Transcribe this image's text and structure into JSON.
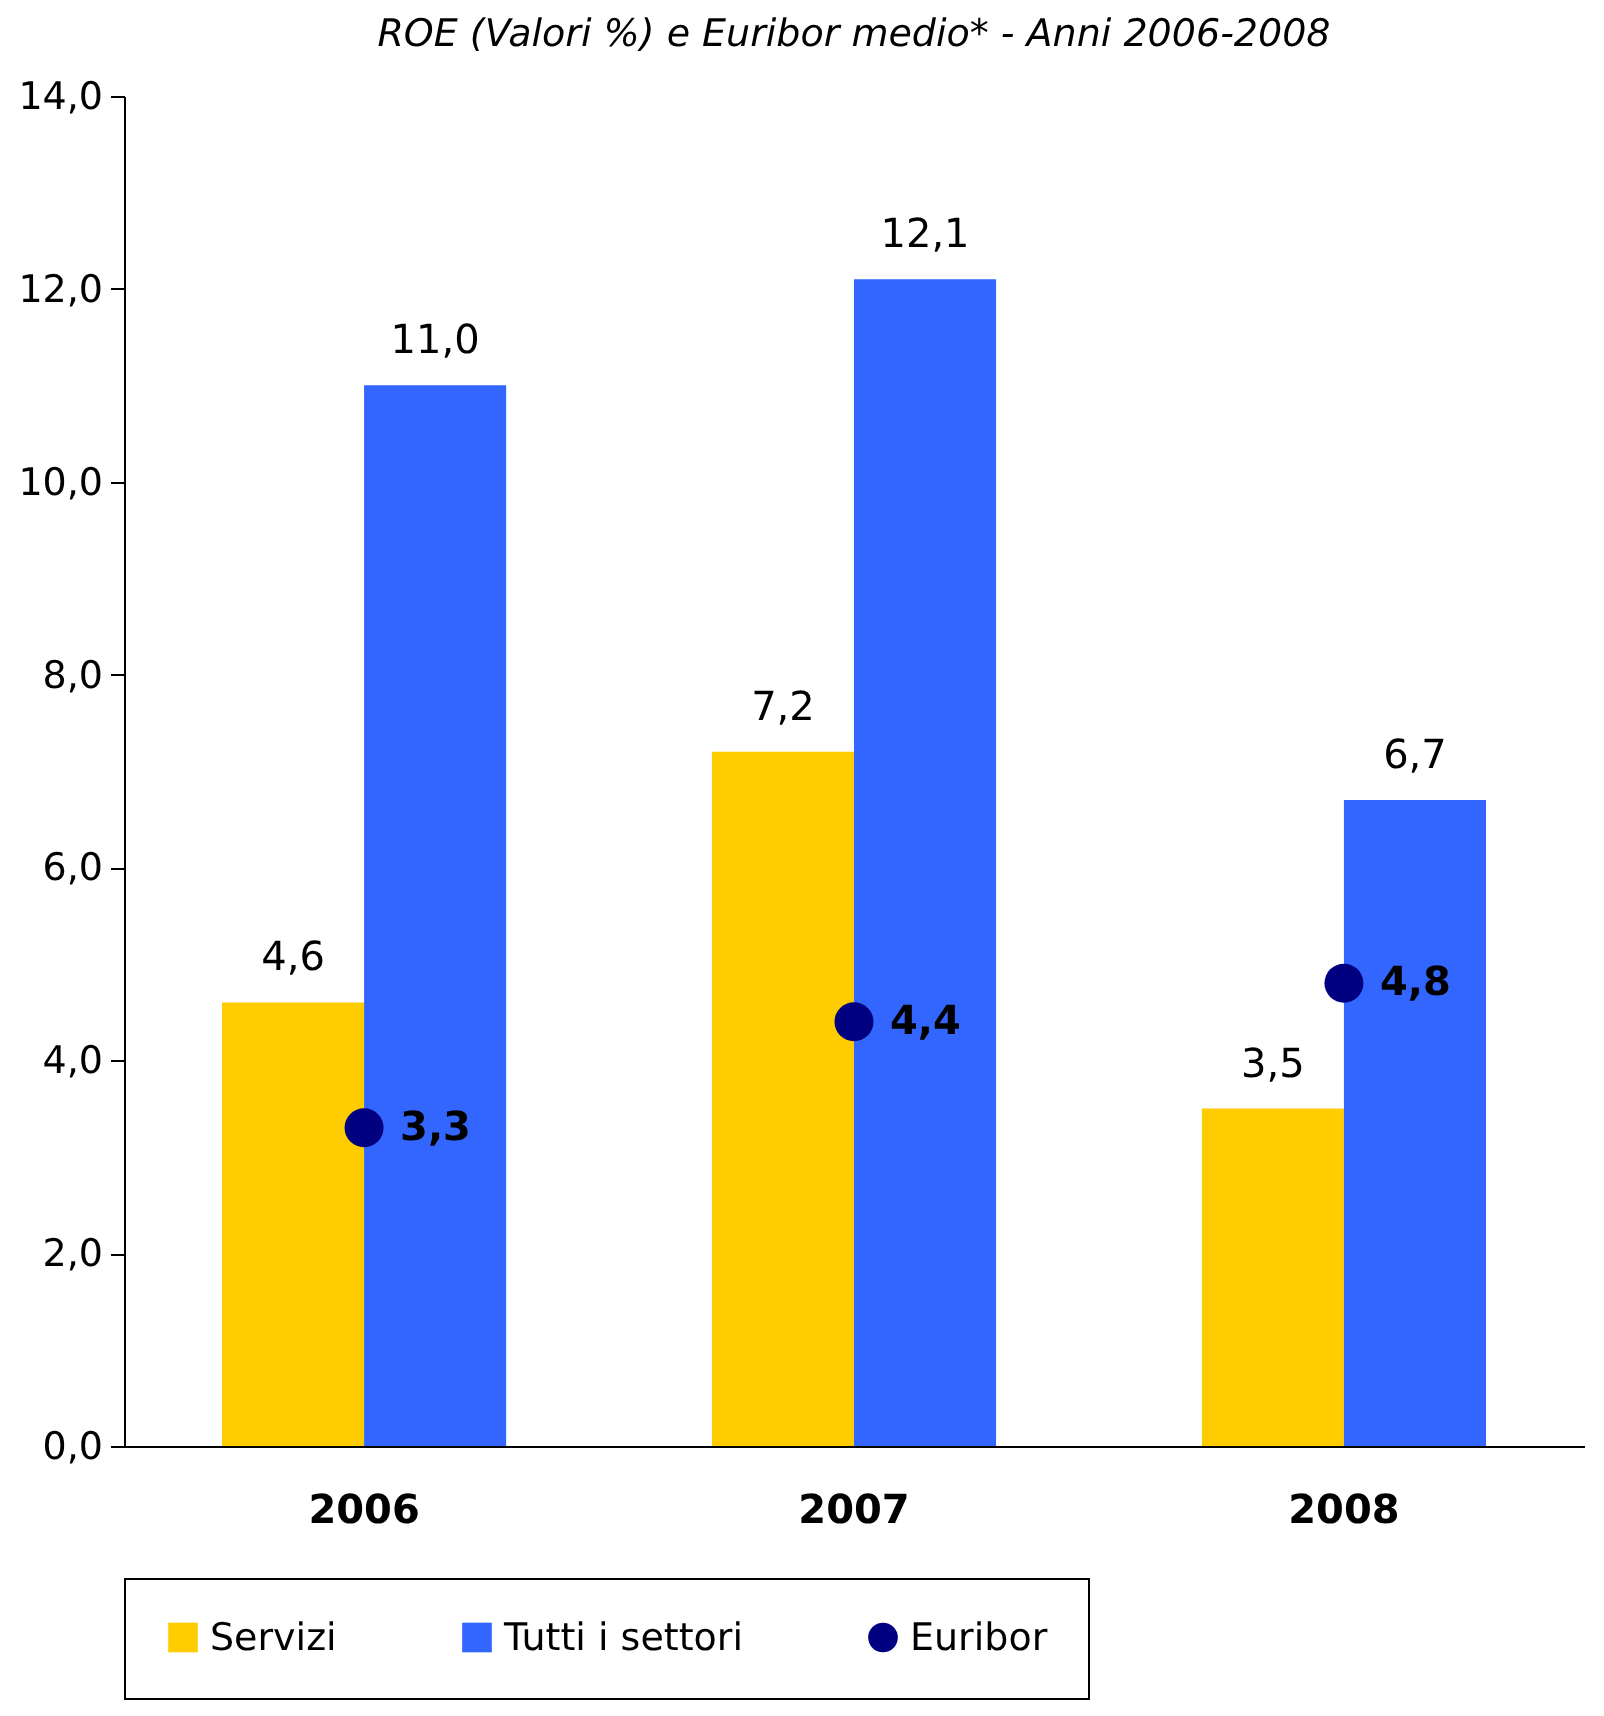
{
  "chart_data": {
    "type": "bar",
    "title": "ROE (Valori %) e Euribor medio* - Anni 2006-2008",
    "categories": [
      "2006",
      "2007",
      "2008"
    ],
    "series": [
      {
        "name": "Servizi",
        "color": "#ffcc00",
        "values": [
          4.6,
          7.2,
          3.5
        ],
        "value_labels": [
          "4,6",
          "7,2",
          "3,5"
        ]
      },
      {
        "name": "Tutti i settori",
        "color": "#3366ff",
        "values": [
          11.0,
          12.1,
          6.7
        ],
        "value_labels": [
          "11,0",
          "12,1",
          "6,7"
        ]
      },
      {
        "name": "Euribor",
        "type": "scatter",
        "marker": "circle",
        "color": "#000080",
        "values": [
          3.3,
          4.4,
          4.8
        ],
        "value_labels": [
          "3,3",
          "4,4",
          "4,8"
        ]
      }
    ],
    "ylim": [
      0,
      14
    ],
    "yticks": [
      {
        "value": 0,
        "label": "0,0"
      },
      {
        "value": 2,
        "label": "2,0"
      },
      {
        "value": 4,
        "label": "4,0"
      },
      {
        "value": 6,
        "label": "6,0"
      },
      {
        "value": 8,
        "label": "8,0"
      },
      {
        "value": 10,
        "label": "10,0"
      },
      {
        "value": 12,
        "label": "12,0"
      },
      {
        "value": 14,
        "label": "14,0"
      }
    ],
    "grid": false,
    "legend": "bottom"
  }
}
